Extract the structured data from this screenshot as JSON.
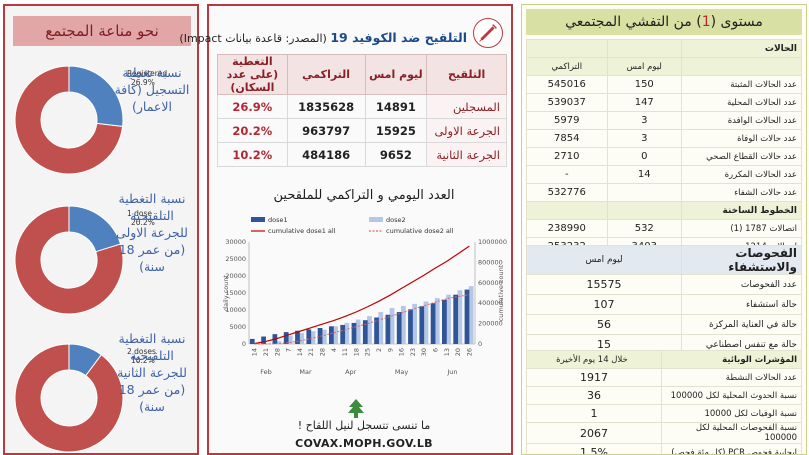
{
  "left": {
    "header": "نحو مناعة المجتمع",
    "donuts": [
      {
        "label": "نسبة تغطية التسجيل (كافة الاعمار)",
        "legend_name": "Registered",
        "legend_value": "26.9%",
        "value": 26.9
      },
      {
        "label": "نسبة التغطية التلقيحية للجرعة الاولى (من عمر 18 سنة)",
        "legend_name": "1 dose",
        "legend_value": "20.2%",
        "value": 20.2
      },
      {
        "label": "نسبة التغطية التلقيحية للجرعة الثانية (من عمر 18 سنة)",
        "legend_name": "2 doses",
        "legend_value": "10.2%",
        "value": 10.2
      }
    ],
    "colors": {
      "filled": "#4e81bd",
      "empty": "#c0504d"
    }
  },
  "middle": {
    "title_main": "التلقيح ضد الكوفيد 19",
    "title_source": "(المصدر: قاعدة بيانات Impact)",
    "table": {
      "headers": [
        "التلقيح",
        "ليوم امس",
        "التراكمي",
        "التغطية (على عدد السكان)"
      ],
      "rows": [
        {
          "name": "المسجلين",
          "yesterday": "14891",
          "cumulative": "1835628",
          "coverage": "26.9%"
        },
        {
          "name": "الجرعة الاولى",
          "yesterday": "15925",
          "cumulative": "963797",
          "coverage": "20.2%"
        },
        {
          "name": "الجرعة الثانية",
          "yesterday": "9652",
          "cumulative": "484186",
          "coverage": "10.2%"
        }
      ]
    },
    "chart_title": "العدد اليومي و التراكمي للملقحين",
    "slogan": "ما تنسى تتسجل لنيل اللقاح !",
    "url": "COVAX.MOPH.GOV.LB"
  },
  "chart_data": {
    "type": "bar",
    "title": "",
    "ylabel": "daily count",
    "y2label": "cumulative count",
    "ylim": [
      0,
      30000
    ],
    "y2lim": [
      0,
      1000000
    ],
    "yticks": [
      "0",
      "5000",
      "10000",
      "15000",
      "20000",
      "25000",
      "30000"
    ],
    "y2ticks": [
      "0",
      "200000",
      "400000",
      "600000",
      "800000",
      "1000000"
    ],
    "months": [
      "Feb",
      "Mar",
      "Apr",
      "May",
      "Jun"
    ],
    "day_ticks": [
      "14",
      "21",
      "28",
      "7",
      "14",
      "21",
      "28",
      "4",
      "11",
      "18",
      "25",
      "2",
      "9",
      "16",
      "23",
      "30",
      "6",
      "13",
      "20",
      "26"
    ],
    "series": [
      {
        "name": "dose1",
        "kind": "bar",
        "color": "#2f5597",
        "values": [
          1500,
          2200,
          2900,
          3500,
          3900,
          4300,
          4700,
          5200,
          5600,
          6200,
          7000,
          7800,
          8600,
          9400,
          10200,
          11100,
          12000,
          13000,
          14500,
          16000
        ]
      },
      {
        "name": "dose2",
        "kind": "bar",
        "color": "#b4c7e7",
        "values": [
          0,
          0,
          800,
          2400,
          3200,
          3800,
          4200,
          5200,
          6200,
          7200,
          8200,
          9400,
          10600,
          11200,
          11800,
          12500,
          13500,
          14500,
          15800,
          17000
        ]
      },
      {
        "name": "cumulative dose1 all",
        "kind": "line",
        "color": "#c00000",
        "values": [
          5000,
          25000,
          55000,
          90000,
          125000,
          160000,
          195000,
          230000,
          270000,
          315000,
          365000,
          420000,
          480000,
          545000,
          610000,
          675000,
          745000,
          810000,
          885000,
          960000
        ]
      },
      {
        "name": "cumulative dose2 all",
        "kind": "line",
        "color": "#e06666",
        "values": [
          0,
          0,
          4000,
          12000,
          30000,
          55000,
          80000,
          110000,
          140000,
          170000,
          200000,
          235000,
          270000,
          305000,
          340000,
          375000,
          410000,
          445000,
          465000,
          484000
        ]
      }
    ]
  },
  "right": {
    "header_pre": "مستوى (",
    "header_level": "1",
    "header_post": ") من التفشي المجتمعي",
    "cases": {
      "section": "الحالات",
      "col_yesterday": "ليوم امس",
      "col_cumulative": "التراكمي",
      "rows": [
        {
          "name": "عدد الحالات المثبتة",
          "yesterday": "150",
          "cumulative": "545016"
        },
        {
          "name": "عدد الحالات المحلية",
          "yesterday": "147",
          "cumulative": "539037"
        },
        {
          "name": "عدد الحالات الوافدة",
          "yesterday": "3",
          "cumulative": "5979"
        },
        {
          "name": "عدد حالات الوفاة",
          "yesterday": "3",
          "cumulative": "7854"
        },
        {
          "name": "عدد حالات القطاع الصحي",
          "yesterday": "0",
          "cumulative": "2710"
        },
        {
          "name": "عدد الحالات المكررة",
          "yesterday": "14",
          "cumulative": "-"
        },
        {
          "name": "عدد حالات الشفاء",
          "yesterday": "",
          "cumulative": "532776"
        }
      ]
    },
    "hotlines": {
      "section": "الخطوط الساخنة",
      "rows": [
        {
          "name": "اتصالات 1787 (1)",
          "yesterday": "532",
          "cumulative": "238990"
        },
        {
          "name": "اتصالات 1214",
          "yesterday": "3403",
          "cumulative": "253232"
        }
      ]
    },
    "tests": {
      "section": "الفحوصات والاستشفاء",
      "col": "ليوم امس",
      "rows": [
        {
          "name": "عدد الفحوصات",
          "value": "15575"
        },
        {
          "name": "حالة استشفاء",
          "value": "107"
        },
        {
          "name": "حالة في العناية المركزة",
          "value": "56"
        },
        {
          "name": "حالة مع تنفس اصطناعي",
          "value": "15"
        }
      ]
    },
    "epi": {
      "section": "المؤشرات الوبائية",
      "col": "خلال 14 يوم الأخيرة",
      "rows": [
        {
          "name": "عدد الحالات النشطة",
          "value": "1917"
        },
        {
          "name": "نسبة الحدوث المحلية لكل 100000",
          "value": "36"
        },
        {
          "name": "نسبة الوفيات لكل 10000",
          "value": "1"
        },
        {
          "name": "نسبة الفحوصات المحلية لكل 100000",
          "value": "2067"
        },
        {
          "name": "ايجابية فحوص PCR (كل مئة فحص)",
          "value": "1.5%"
        }
      ]
    }
  }
}
